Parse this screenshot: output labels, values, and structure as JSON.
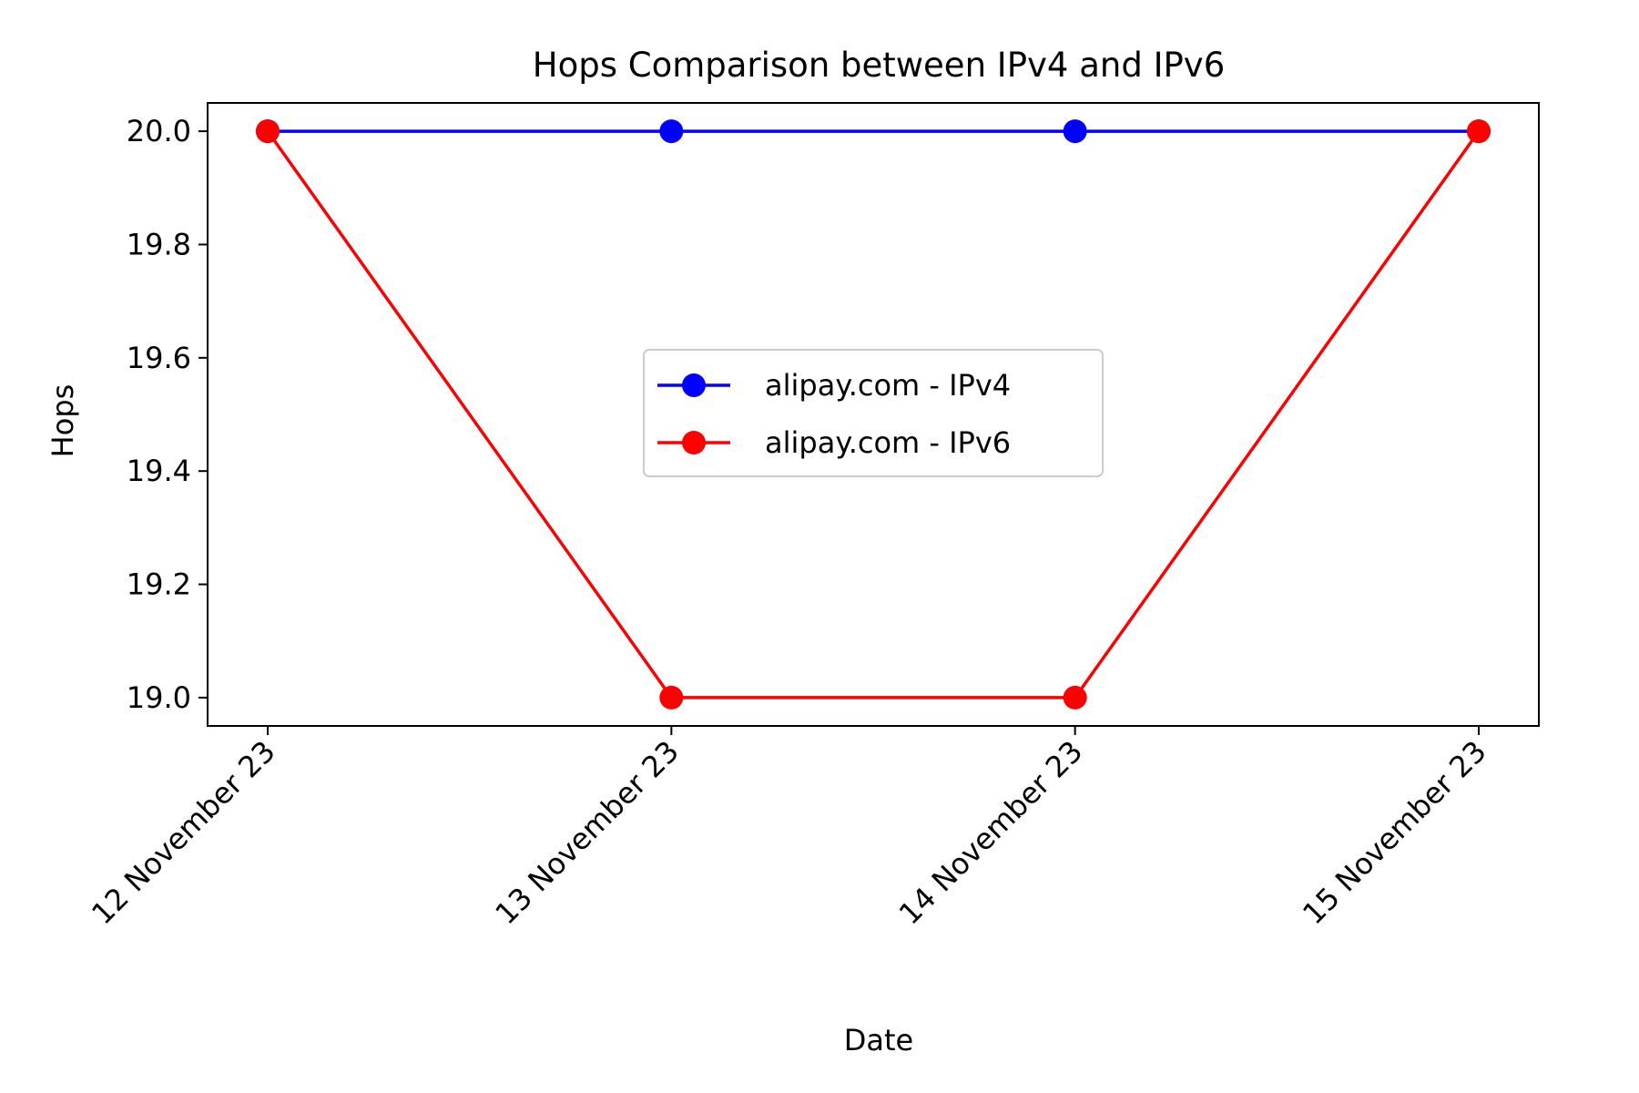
{
  "chart_data": {
    "type": "line",
    "title": "Hops Comparison between IPv4 and IPv6",
    "xlabel": "Date",
    "ylabel": "Hops",
    "categories": [
      "12 November 23",
      "13 November 23",
      "14 November 23",
      "15 November 23"
    ],
    "series": [
      {
        "name": "alipay.com - IPv4",
        "color": "#0000ff",
        "marker": "circle",
        "values": [
          20,
          20,
          20,
          20
        ]
      },
      {
        "name": "alipay.com - IPv6",
        "color": "#ff0000",
        "marker": "circle",
        "values": [
          20,
          19,
          19,
          20
        ]
      }
    ],
    "ylim": [
      18.95,
      20.05
    ],
    "yticks": [
      "19.0",
      "19.2",
      "19.4",
      "19.6",
      "19.8",
      "20.0"
    ],
    "grid": false,
    "legend": "center"
  }
}
